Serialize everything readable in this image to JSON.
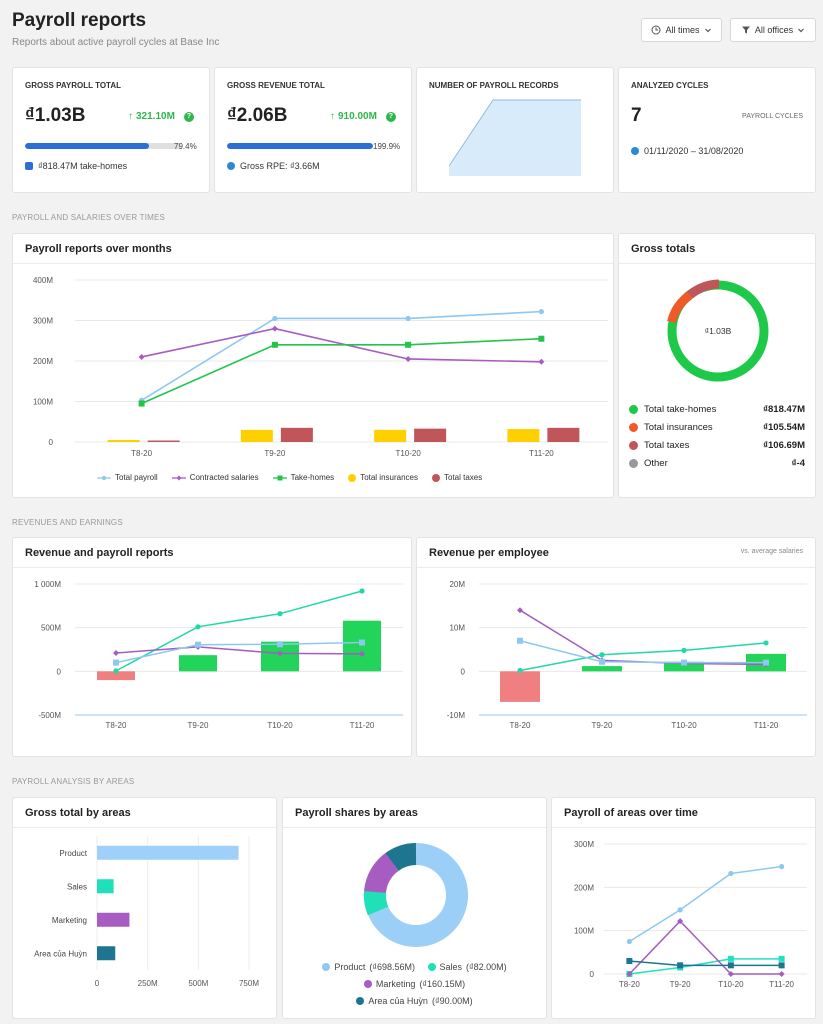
{
  "header": {
    "title": "Payroll reports",
    "subtitle": "Reports about active payroll cycles at Base Inc",
    "filters": [
      {
        "label": "All times",
        "icon": "clock-icon"
      },
      {
        "label": "All offices",
        "icon": "filter-icon"
      }
    ]
  },
  "kpis": {
    "gross_payroll": {
      "label": "GROSS PAYROLL TOTAL",
      "value": "₫1.03B",
      "delta": "321.10M",
      "progress": 0.794,
      "progress_label": "79.4%",
      "note_value": "₫818.47M",
      "note_text": " take-homes"
    },
    "gross_revenue": {
      "label": "GROSS REVENUE TOTAL",
      "value": "₫2.06B",
      "delta": "910.00M",
      "progress": 1.0,
      "progress_label": "199.9%",
      "note_text": "Gross RPE: ",
      "note_value": "₫3.66M"
    },
    "records": {
      "label": "NUMBER OF PAYROLL RECORDS"
    },
    "cycles": {
      "label": "ANALYZED CYCLES",
      "value": "7",
      "unit": "PAYROLL CYCLES",
      "range": "01/11/2020 – 31/08/2020"
    }
  },
  "sections": {
    "s1": "PAYROLL AND SALARIES OVER TIMES",
    "s2": "REVENUES AND EARNINGS",
    "s3": "PAYROLL ANALYSIS BY AREAS"
  },
  "cards": {
    "payroll_months": "Payroll reports over months",
    "gross_totals": "Gross totals",
    "revenue_payroll": "Revenue and payroll reports",
    "revenue_employee": "Revenue per employee",
    "revenue_employee_note": "vs. average salaries",
    "gross_areas": "Gross total by areas",
    "payroll_shares": "Payroll shares by areas",
    "payroll_areas_time": "Payroll of areas over time"
  },
  "gross_totals": {
    "center": "₫1.03B",
    "rows": [
      {
        "label": "Total take-homes",
        "value": "₫818.47M",
        "color": "#1ec94a"
      },
      {
        "label": "Total insurances",
        "value": "₫105.54M",
        "color": "#f05a28"
      },
      {
        "label": "Total taxes",
        "value": "₫106.69M",
        "color": "#c0555a"
      },
      {
        "label": "Other",
        "value": "₫-4",
        "color": "#999999"
      }
    ]
  },
  "shares_legend": [
    {
      "label": "Product",
      "value": "(₫698.56M)",
      "color": "#8ec8f8"
    },
    {
      "label": "Sales",
      "value": "(₫82.00M)",
      "color": "#20e0b8"
    },
    {
      "label": "Marketing",
      "value": "(₫160.15M)",
      "color": "#a65cc0"
    },
    {
      "label": "Area của Huỳn",
      "value": "(₫90.00M)",
      "color": "#1d7590"
    }
  ],
  "chart_data": [
    {
      "type": "line",
      "title": "Payroll reports over months",
      "categories": [
        "T8-20",
        "T9-20",
        "T10-20",
        "T11-20"
      ],
      "ylim": [
        0,
        400
      ],
      "yticks": [
        "0",
        "100M",
        "200M",
        "300M",
        "400M"
      ],
      "legend_position": "bottom",
      "series": [
        {
          "name": "Total payroll",
          "kind": "line",
          "values": [
            103,
            305,
            305,
            322
          ],
          "color": "#8ec8f0"
        },
        {
          "name": "Contracted salaries",
          "kind": "line",
          "values": [
            210,
            280,
            205,
            198
          ],
          "color": "#a65cc0"
        },
        {
          "name": "Take-homes",
          "kind": "line",
          "values": [
            95,
            240,
            240,
            255
          ],
          "color": "#22c44a"
        },
        {
          "name": "Total insurances",
          "kind": "bar",
          "values": [
            5,
            30,
            30,
            32
          ],
          "color": "#ffd000"
        },
        {
          "name": "Total taxes",
          "kind": "bar",
          "values": [
            1,
            35,
            33,
            35
          ],
          "color": "#c0555a"
        }
      ]
    },
    {
      "type": "pie",
      "title": "Gross totals",
      "categories": [
        "Total take-homes",
        "Total insurances",
        "Total taxes",
        "Other"
      ],
      "values": [
        818.47,
        105.54,
        106.69,
        0
      ]
    },
    {
      "type": "bar",
      "title": "Revenue and payroll reports",
      "categories": [
        "T8-20",
        "T9-20",
        "T10-20",
        "T11-20"
      ],
      "ylim": [
        -500,
        1000
      ],
      "yticks": [
        "-500M",
        "0",
        "500M",
        "1 000M"
      ],
      "series": [
        {
          "kind": "bar",
          "values": [
            -100,
            185,
            340,
            580
          ]
        },
        {
          "kind": "line",
          "values": [
            5,
            510,
            660,
            920
          ],
          "color": "#20d8a8"
        },
        {
          "kind": "line",
          "values": [
            210,
            280,
            205,
            200
          ],
          "color": "#a65cc0"
        },
        {
          "kind": "line",
          "values": [
            100,
            305,
            310,
            330
          ],
          "color": "#8ec8f0"
        }
      ]
    },
    {
      "type": "bar",
      "title": "Revenue per employee",
      "categories": [
        "T8-20",
        "T9-20",
        "T10-20",
        "T11-20"
      ],
      "ylim": [
        -10,
        20
      ],
      "yticks": [
        "-10M",
        "0",
        "10M",
        "20M"
      ],
      "series": [
        {
          "kind": "bar",
          "values": [
            -7,
            1.2,
            2.2,
            4
          ]
        },
        {
          "kind": "line",
          "values": [
            0.2,
            3.8,
            4.8,
            6.5
          ],
          "color": "#20d8a8"
        },
        {
          "kind": "line",
          "values": [
            14,
            2.5,
            1.8,
            1.6
          ],
          "color": "#a65cc0"
        },
        {
          "kind": "line",
          "values": [
            7,
            2.2,
            2.0,
            2.0
          ],
          "color": "#8ec8f0"
        }
      ]
    },
    {
      "type": "bar",
      "title": "Gross total by areas",
      "categories": [
        "Product",
        "Sales",
        "Marketing",
        "Area của Huỳn"
      ],
      "values": [
        698.56,
        82,
        160.15,
        90
      ],
      "colors": [
        "#9fd0fa",
        "#20e0b8",
        "#a65cc0",
        "#1d7590"
      ],
      "xlim": [
        0,
        750
      ],
      "xticks": [
        "0",
        "250M",
        "500M",
        "750M"
      ]
    },
    {
      "type": "pie",
      "title": "Payroll shares by areas",
      "categories": [
        "Product",
        "Sales",
        "Marketing",
        "Area của Huỳn"
      ],
      "values": [
        698.56,
        82,
        160.15,
        90
      ]
    },
    {
      "type": "line",
      "title": "Payroll of areas over time",
      "categories": [
        "T8-20",
        "T9-20",
        "T10-20",
        "T11-20"
      ],
      "ylim": [
        0,
        300
      ],
      "yticks": [
        "0",
        "100M",
        "200M",
        "300M"
      ],
      "series": [
        {
          "values": [
            75,
            148,
            232,
            248
          ],
          "color": "#8ec8f0"
        },
        {
          "values": [
            0,
            15,
            35,
            35
          ],
          "color": "#20e0c0"
        },
        {
          "values": [
            0,
            122,
            0,
            0
          ],
          "color": "#a65cc0"
        },
        {
          "values": [
            30,
            20,
            20,
            20
          ],
          "color": "#1d7590"
        }
      ]
    }
  ]
}
